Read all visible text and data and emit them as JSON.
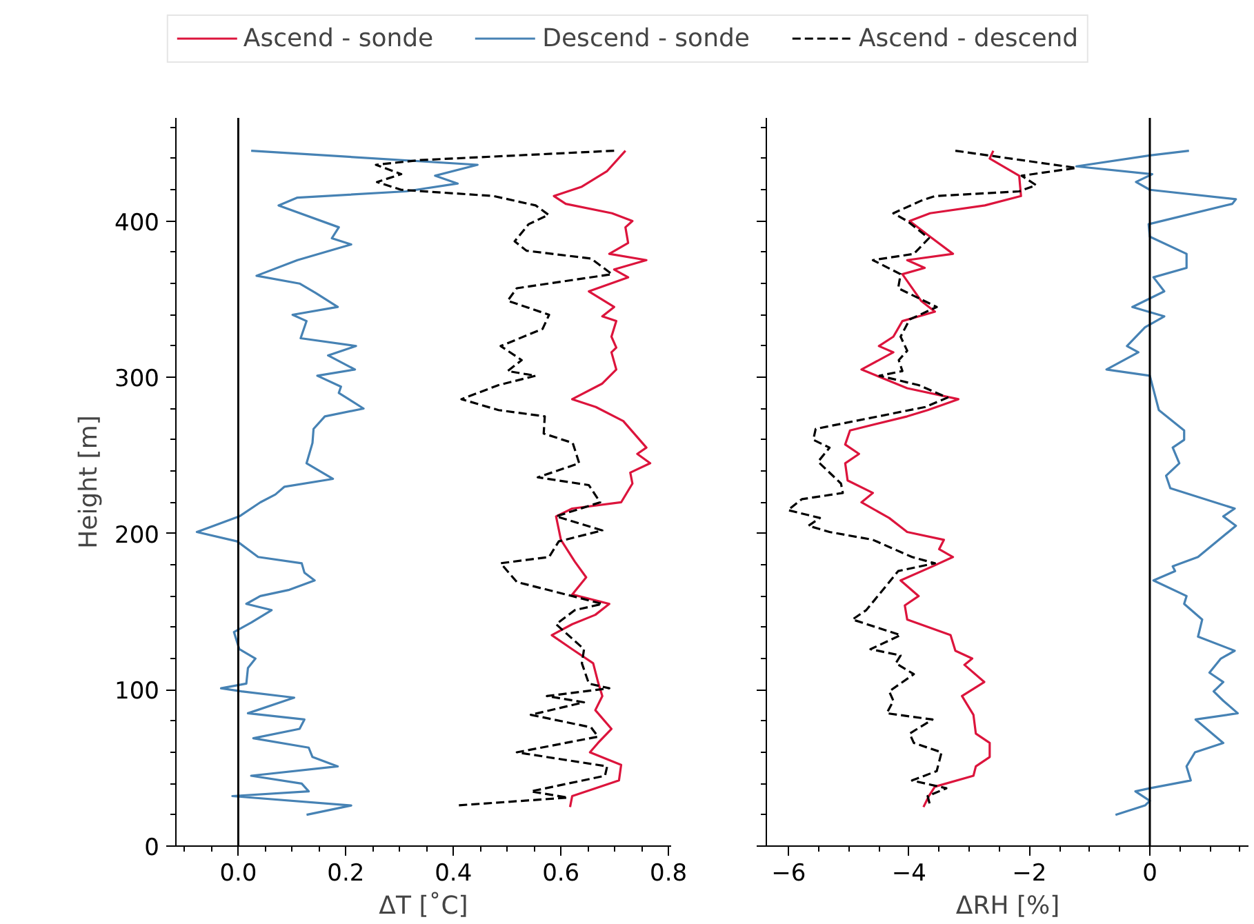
{
  "chart_data": [
    {
      "type": "line",
      "xlabel": "ΔT [˚C]",
      "ylabel": "Height [m]",
      "legend": "top",
      "grid": false,
      "xlim": [
        -0.116,
        0.805
      ],
      "ylim": [
        0,
        466
      ],
      "xticks": [
        {
          "value": -0.1,
          "label": null
        },
        {
          "value": -0.05,
          "label": null
        },
        {
          "value": 0,
          "label": "0.0"
        },
        {
          "value": 0.05,
          "label": null
        },
        {
          "value": 0.1,
          "label": null
        },
        {
          "value": 0.15,
          "label": null
        },
        {
          "value": 0.2,
          "label": "0.2"
        },
        {
          "value": 0.25,
          "label": null
        },
        {
          "value": 0.3,
          "label": null
        },
        {
          "value": 0.35,
          "label": null
        },
        {
          "value": 0.4,
          "label": "0.4"
        },
        {
          "value": 0.45,
          "label": null
        },
        {
          "value": 0.5,
          "label": null
        },
        {
          "value": 0.55,
          "label": null
        },
        {
          "value": 0.6,
          "label": "0.6"
        },
        {
          "value": 0.65,
          "label": null
        },
        {
          "value": 0.7,
          "label": null
        },
        {
          "value": 0.75,
          "label": null
        },
        {
          "value": 0.8,
          "label": "0.8"
        }
      ],
      "yticks": [
        0,
        {
          "value": 20,
          "label": null
        },
        {
          "value": 40,
          "label": null
        },
        {
          "value": 60,
          "label": null
        },
        {
          "value": 80,
          "label": null
        },
        100,
        {
          "value": 120,
          "label": null
        },
        {
          "value": 140,
          "label": null
        },
        {
          "value": 160,
          "label": null
        },
        {
          "value": 180,
          "label": null
        },
        200,
        {
          "value": 220,
          "label": null
        },
        {
          "value": 240,
          "label": null
        },
        {
          "value": 260,
          "label": null
        },
        {
          "value": 280,
          "label": null
        },
        300,
        {
          "value": 320,
          "label": null
        },
        {
          "value": 340,
          "label": null
        },
        {
          "value": 360,
          "label": null
        },
        {
          "value": 380,
          "label": null
        },
        400,
        {
          "value": 420,
          "label": null
        },
        {
          "value": 440,
          "label": null
        },
        {
          "value": 460,
          "label": null
        }
      ],
      "ref_lines": [
        {
          "axis": "x",
          "value": 0,
          "color": "#000000"
        }
      ],
      "series": [
        {
          "name": "Ascend - sonde",
          "color": "#dc143c",
          "line_style": "solid",
          "x": [
            0.72,
            0.686,
            0.639,
            0.587,
            0.609,
            0.695,
            0.733,
            0.72,
            0.725,
            0.69,
            0.759,
            0.699,
            0.725,
            0.652,
            0.699,
            0.677,
            0.703,
            0.694,
            0.703,
            0.694,
            0.703,
            0.677,
            0.621,
            0.665,
            0.716,
            0.759,
            0.742,
            0.766,
            0.729,
            0.733,
            0.712,
            0.621,
            0.591,
            0.6,
            0.626,
            0.647,
            0.621,
            0.69,
            0.664,
            0.621,
            0.583,
            0.621,
            0.66,
            0.669,
            0.677,
            0.664,
            0.694,
            0.669,
            0.654,
            0.712,
            0.708,
            0.621,
            0.617
          ],
          "values": [
            445,
            432,
            422,
            416,
            411,
            405,
            400,
            396,
            386,
            379,
            375,
            369,
            364,
            355,
            345,
            339,
            336,
            326,
            319,
            316,
            305,
            296,
            286,
            281,
            272,
            255,
            251,
            245,
            239,
            232,
            220,
            216,
            211,
            196,
            182,
            172,
            161,
            155,
            148,
            142,
            135,
            126,
            117,
            105,
            96,
            87,
            75,
            66,
            60,
            52,
            42,
            32,
            25
          ]
        },
        {
          "name": "Descend - sonde",
          "color": "#4682b4",
          "line_style": "solid",
          "x": [
            0.024,
            0.445,
            0.366,
            0.408,
            0.312,
            0.11,
            0.075,
            0.187,
            0.174,
            0.21,
            0.11,
            0.034,
            0.114,
            0.144,
            0.185,
            0.101,
            0.127,
            0.116,
            0.219,
            0.167,
            0.217,
            0.147,
            0.191,
            0.187,
            0.233,
            0.161,
            0.14,
            0.138,
            0.127,
            0.176,
            0.086,
            0.069,
            0.041,
            0.002,
            -0.077,
            -0.002,
            0.037,
            0.118,
            0.123,
            0.142,
            0.095,
            0.041,
            0.015,
            0.062,
            0.024,
            -0.008,
            0.002,
            0.032,
            0.018,
            0.015,
            -0.032,
            0.006,
            0.104,
            0.018,
            0.123,
            0.114,
            0.028,
            0.131,
            0.138,
            0.185,
            0.024,
            0.118,
            0.131,
            -0.011,
            0.21,
            0.127
          ],
          "values": [
            445,
            436,
            429,
            424,
            419,
            415,
            410,
            396,
            389,
            385,
            375,
            365,
            360,
            354,
            345,
            340,
            336,
            325,
            320,
            314,
            305,
            301,
            294,
            290,
            280,
            275,
            267,
            258,
            245,
            235,
            230,
            225,
            220,
            211,
            201,
            195,
            185,
            181,
            175,
            170,
            164,
            160,
            155,
            151,
            143,
            137,
            126,
            120,
            114,
            104,
            101,
            99,
            95,
            85,
            81,
            75,
            69,
            63,
            57,
            51,
            45,
            40,
            35,
            32,
            26,
            20
          ]
        },
        {
          "name": "Ascend - descend",
          "color": "#000000",
          "line_style": "dashed",
          "x": [
            0.699,
            0.338,
            0.256,
            0.303,
            0.258,
            0.303,
            0.475,
            0.553,
            0.577,
            0.54,
            0.514,
            0.536,
            0.656,
            0.695,
            0.518,
            0.501,
            0.578,
            0.566,
            0.488,
            0.527,
            0.501,
            0.553,
            0.484,
            0.415,
            0.484,
            0.57,
            0.568,
            0.622,
            0.634,
            0.557,
            0.652,
            0.673,
            0.591,
            0.677,
            0.596,
            0.578,
            0.488,
            0.518,
            0.621,
            0.677,
            0.626,
            0.591,
            0.643,
            0.639,
            0.652,
            0.69,
            0.574,
            0.643,
            0.544,
            0.656,
            0.669,
            0.518,
            0.686,
            0.682,
            0.544,
            0.613,
            0.406
          ],
          "values": [
            445,
            439,
            436,
            430,
            425,
            420,
            416,
            410,
            404,
            398,
            387,
            381,
            376,
            366,
            357,
            349,
            340,
            331,
            320,
            311,
            304,
            301,
            295,
            286,
            279,
            275,
            264,
            258,
            245,
            236,
            231,
            220,
            211,
            202,
            195,
            185,
            181,
            169,
            160,
            155,
            151,
            142,
            126,
            117,
            104,
            101,
            96,
            92,
            84,
            76,
            70,
            60,
            51,
            45,
            35,
            31,
            26
          ]
        }
      ]
    },
    {
      "type": "line",
      "xlabel": "ΔRH [%]",
      "legend": false,
      "grid": false,
      "tick_labels": "x",
      "xlim": [
        -6.37,
        1.65
      ],
      "ylim": [
        0,
        466
      ],
      "xticks": [
        {
          "value": -6,
          "label": "−6"
        },
        {
          "value": -5.5,
          "label": null
        },
        {
          "value": -5,
          "label": null
        },
        {
          "value": -4.5,
          "label": null
        },
        {
          "value": -4,
          "label": "−4"
        },
        {
          "value": -3.5,
          "label": null
        },
        {
          "value": -3,
          "label": null
        },
        {
          "value": -2.5,
          "label": null
        },
        {
          "value": -2,
          "label": "−2"
        },
        {
          "value": -1.5,
          "label": null
        },
        {
          "value": -1,
          "label": null
        },
        {
          "value": -0.5,
          "label": null
        },
        0,
        {
          "value": 0.5,
          "label": null
        },
        {
          "value": 1,
          "label": null
        },
        {
          "value": 1.5,
          "label": null
        }
      ],
      "yticks": [
        0,
        {
          "value": 20,
          "label": null
        },
        {
          "value": 40,
          "label": null
        },
        {
          "value": 60,
          "label": null
        },
        {
          "value": 80,
          "label": null
        },
        100,
        {
          "value": 120,
          "label": null
        },
        {
          "value": 140,
          "label": null
        },
        {
          "value": 160,
          "label": null
        },
        {
          "value": 180,
          "label": null
        },
        200,
        {
          "value": 220,
          "label": null
        },
        {
          "value": 240,
          "label": null
        },
        {
          "value": 260,
          "label": null
        },
        {
          "value": 280,
          "label": null
        },
        300,
        {
          "value": 320,
          "label": null
        },
        {
          "value": 340,
          "label": null
        },
        {
          "value": 360,
          "label": null
        },
        {
          "value": 380,
          "label": null
        },
        400,
        {
          "value": 420,
          "label": null
        },
        {
          "value": 440,
          "label": null
        },
        {
          "value": 460,
          "label": null
        }
      ],
      "ref_lines": [
        {
          "axis": "x",
          "value": 0,
          "color": "#000000"
        }
      ],
      "series": [
        {
          "color": "#dc143c",
          "line_style": "solid",
          "x": [
            -2.6,
            -2.66,
            -2.17,
            -2.14,
            -2.74,
            -3.65,
            -3.99,
            -3.65,
            -3.27,
            -4.03,
            -3.74,
            -4.11,
            -3.8,
            -3.57,
            -4.11,
            -4.26,
            -4.5,
            -4.26,
            -4.79,
            -4.03,
            -3.18,
            -3.69,
            -4.03,
            -4.98,
            -5.06,
            -4.83,
            -5.06,
            -5.02,
            -4.6,
            -4.79,
            -4.33,
            -4.03,
            -3.42,
            -3.5,
            -3.27,
            -3.61,
            -4.14,
            -3.84,
            -4.07,
            -4.03,
            -3.31,
            -3.23,
            -2.95,
            -3.08,
            -2.75,
            -3.12,
            -2.93,
            -2.89,
            -2.66,
            -2.66,
            -2.89,
            -2.93,
            -3.57,
            -3.67,
            -3.76
          ],
          "values": [
            445,
            440,
            429,
            416,
            410,
            405,
            400,
            390,
            379,
            375,
            370,
            366,
            349,
            342,
            336,
            326,
            320,
            316,
            305,
            293,
            286,
            279,
            275,
            266,
            257,
            251,
            245,
            234,
            226,
            220,
            210,
            201,
            196,
            190,
            185,
            179,
            170,
            160,
            154,
            145,
            135,
            125,
            120,
            116,
            105,
            96,
            84,
            72,
            66,
            57,
            51,
            45,
            38,
            32,
            25
          ]
        },
        {
          "color": "#4682b4",
          "line_style": "solid",
          "x": [
            0.65,
            0,
            -1.22,
            0.04,
            -0.23,
            0,
            1.43,
            1.37,
            -0.02,
            0,
            0.61,
            0.61,
            0.06,
            0.24,
            -0.29,
            0.24,
            -0.08,
            -0.38,
            -0.19,
            -0.72,
            0,
            0.15,
            0.57,
            0.57,
            0.38,
            0.49,
            0.27,
            0.34,
            1.41,
            1.22,
            1.43,
            0.8,
            0.38,
            0.42,
            0.06,
            0.61,
            0.57,
            0.87,
            0.8,
            1.41,
            1.18,
            0.99,
            1.22,
            1.06,
            1.22,
            1.46,
            0.76,
            1.22,
            0.75,
            0.61,
            0.68,
            0,
            -0.24,
            0,
            -0.08,
            -0.57
          ],
          "values": [
            445,
            442,
            435,
            430,
            425,
            420,
            414,
            411,
            398,
            390,
            379,
            370,
            364,
            355,
            345,
            339,
            332,
            320,
            316,
            305,
            301,
            279,
            266,
            260,
            255,
            245,
            237,
            229,
            216,
            211,
            205,
            185,
            179,
            176,
            170,
            160,
            155,
            145,
            134,
            125,
            120,
            111,
            105,
            99,
            93,
            85,
            81,
            66,
            60,
            51,
            42,
            37,
            35,
            29,
            26,
            20
          ]
        },
        {
          "color": "#000000",
          "line_style": "dashed",
          "x": [
            -3.23,
            -1.22,
            -2.13,
            -1.89,
            -2.17,
            -3.57,
            -3.8,
            -4.26,
            -4.03,
            -3.67,
            -3.92,
            -4.6,
            -4.14,
            -4.18,
            -3.54,
            -3.99,
            -4.14,
            -4.03,
            -4.17,
            -4.11,
            -4.49,
            -3.84,
            -3.36,
            -3.73,
            -5.55,
            -5.59,
            -5.32,
            -5.51,
            -5.13,
            -5.1,
            -5.78,
            -6.01,
            -5.48,
            -5.67,
            -5.32,
            -4.6,
            -3.95,
            -3.57,
            -4.18,
            -4.37,
            -4.71,
            -4.94,
            -4.14,
            -4.64,
            -4.14,
            -4.22,
            -3.92,
            -4.33,
            -4.26,
            -4.37,
            -3.61,
            -3.99,
            -3.92,
            -3.46,
            -3.54,
            -3.95,
            -3.38,
            -3.69,
            -3.65
          ],
          "values": [
            445,
            434,
            429,
            423,
            419,
            416,
            413,
            405,
            400,
            389,
            379,
            375,
            366,
            357,
            345,
            337,
            326,
            317,
            311,
            304,
            301,
            295,
            287,
            281,
            267,
            260,
            255,
            246,
            232,
            226,
            222,
            215,
            210,
            205,
            201,
            196,
            185,
            181,
            176,
            167,
            151,
            145,
            135,
            126,
            122,
            117,
            110,
            99,
            93,
            85,
            81,
            72,
            66,
            60,
            48,
            42,
            37,
            32,
            26
          ]
        }
      ]
    }
  ]
}
